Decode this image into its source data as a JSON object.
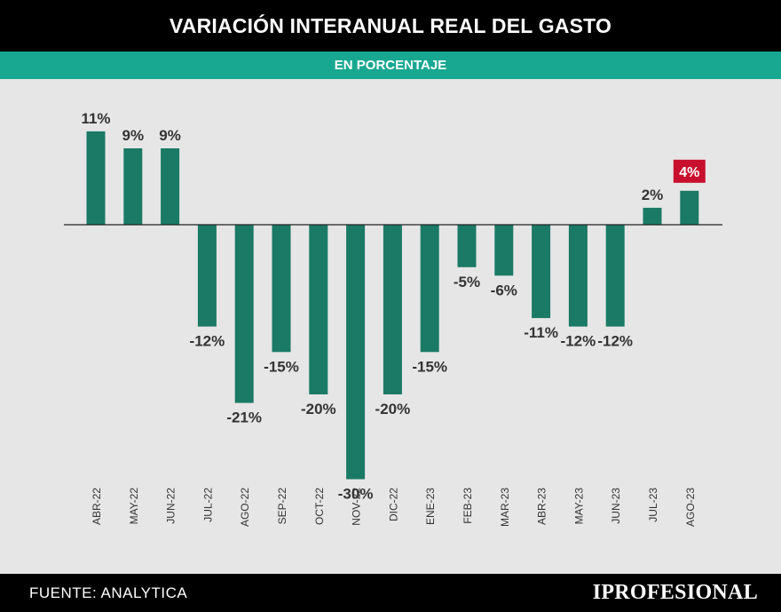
{
  "header": {
    "title": "VARIACIÓN INTERANUAL REAL DEL GASTO",
    "subtitle": "EN PORCENTAJE"
  },
  "footer": {
    "source": "FUENTE: ANALYTICA",
    "brand": "IPROFESIONAL"
  },
  "colors": {
    "bar": "#1a7a66",
    "highlight": "#c8102e",
    "header_bg": "#000000",
    "subheader_bg": "#18a891",
    "plot_bg": "#e6e6e6"
  },
  "chart_data": {
    "type": "bar",
    "title": "VARIACIÓN INTERANUAL REAL DEL GASTO",
    "subtitle": "EN PORCENTAJE",
    "xlabel": "",
    "ylabel": "",
    "categories": [
      "ABR-22",
      "MAY-22",
      "JUN-22",
      "JUL-22",
      "AGO-22",
      "SEP-22",
      "OCT-22",
      "NOV-22",
      "DIC-22",
      "ENE-23",
      "FEB-23",
      "MAR-23",
      "ABR-23",
      "MAY-23",
      "JUN-23",
      "JUL-23",
      "AGO-23"
    ],
    "values": [
      11,
      9,
      9,
      -12,
      -21,
      -15,
      -20,
      -30,
      -20,
      -15,
      -5,
      -6,
      -11,
      -12,
      -12,
      2,
      4
    ],
    "labels": [
      "11%",
      "9%",
      "9%",
      "-12%",
      "-21%",
      "-15%",
      "-20%",
      "-30%",
      "-20%",
      "-15%",
      "-5%",
      "-6%",
      "-11%",
      "-12%",
      "-12%",
      "2%",
      "4%"
    ],
    "highlight_category": "AGO-23",
    "ylim": [
      -30,
      11
    ],
    "grid": false,
    "legend": "none"
  }
}
